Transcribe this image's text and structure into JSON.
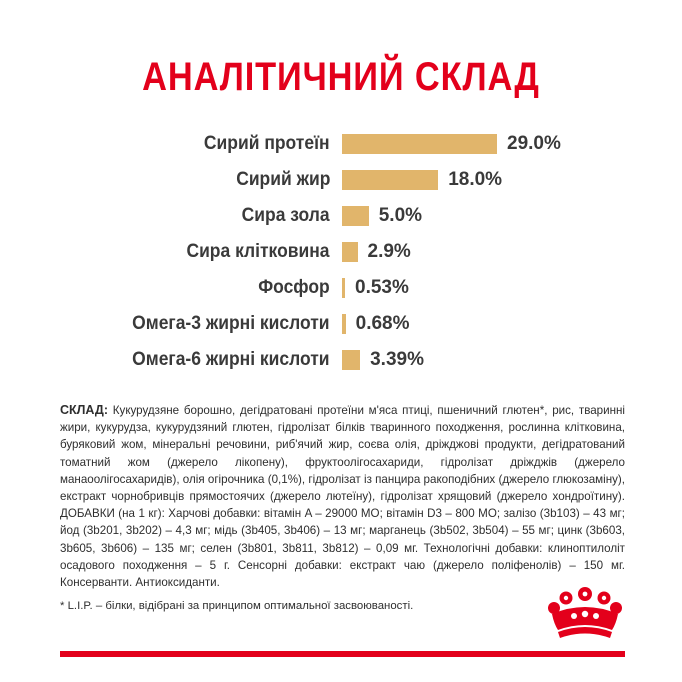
{
  "title": "АНАЛІТИЧНИЙ СКЛАД",
  "nutrients": [
    {
      "label": "Сирий протеїн",
      "value": "29.0%",
      "amount": 29.0
    },
    {
      "label": "Сирий жир",
      "value": "18.0%",
      "amount": 18.0
    },
    {
      "label": "Сира зола",
      "value": "5.0%",
      "amount": 5.0
    },
    {
      "label": "Сира клітковина",
      "value": "2.9%",
      "amount": 2.9
    },
    {
      "label": "Фосфор",
      "value": "0.53%",
      "amount": 0.53
    },
    {
      "label": "Омега-3 жирні кислоти",
      "value": "0.68%",
      "amount": 0.68
    },
    {
      "label": "Омега-6 жирні кислоти",
      "value": "3.39%",
      "amount": 3.39
    }
  ],
  "composition": {
    "label": "СКЛАД:",
    "text": "Кукурудзяне борошно, дегідратовані протеїни м'яса птиці, пшеничний глютен*, рис, тваринні жири, кукурудза, кукурудзяний глютен, гідролізат білків тваринного походження, рослинна клітковина, буряковий жом, мінеральні речовини, риб'ячий жир, соєва олія, дріжджові продукти, дегідратований томатний жом (джерело лікопену), фруктоолігосахариди, гідролізат дріжджів (джерело манаоолігосахаридів), олія огірочника (0,1%), гідролізат із панцира ракоподібних (джерело глюкозаміну), екстракт чорнобривців прямостоячих (джерело лютеїну), гідролізат хрящовий (джерело хондроїтину). ДОБАВКИ (на 1 кг): Харчові добавки: вітамін A – 29000 МО; вітамін D3 – 800 МО; залізо (3b103) – 43 мг; йод (3b201, 3b202) – 4,3 мг; мідь (3b405, 3b406) – 13 мг; марганець (3b502, 3b504) – 55 мг; цинк (3b603, 3b605, 3b606) – 135 мг; селен (3b801, 3b811, 3b812) – 0,09 мг. Технологічні добавки: клиноптилоліт осадового походження – 5 г. Сенсорні добавки: екстракт чаю (джерело поліфенолів) – 150 мг. Консерванти. Антиоксиданти."
  },
  "footnote": "* L.I.P. – білки, відібрані за принципом оптимальної засвоюваності.",
  "colors": {
    "accent": "#e3001b",
    "bar": "#e1b56b"
  },
  "logo": "royal-canin-crown-logo"
}
